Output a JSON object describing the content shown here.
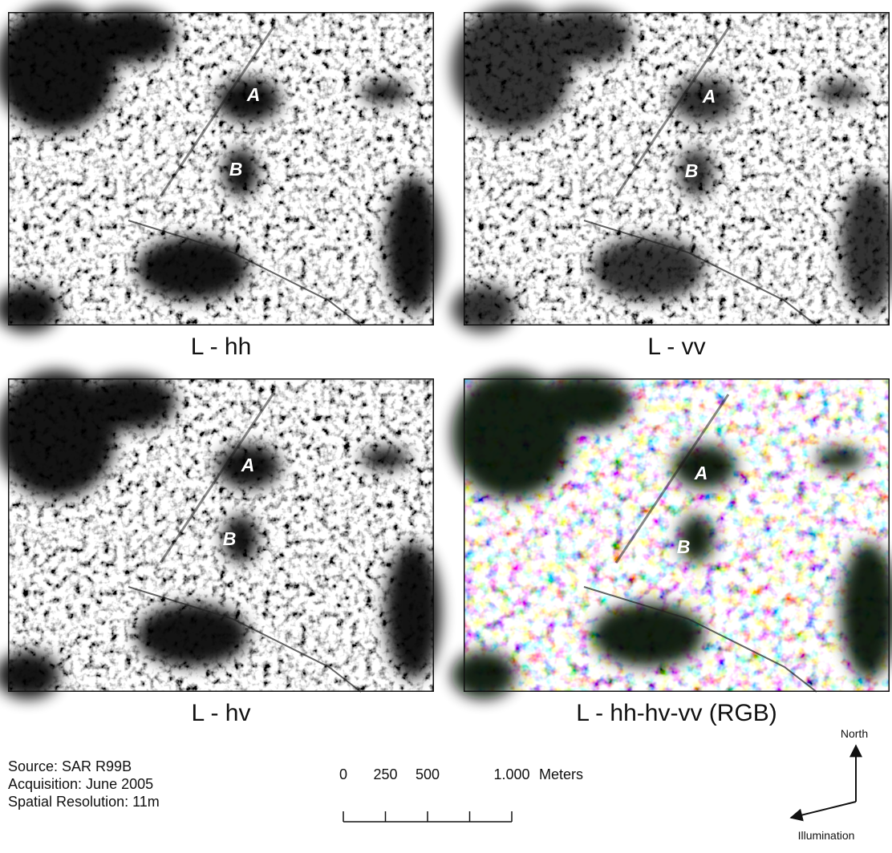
{
  "panels": [
    {
      "caption": "L - hh",
      "labels": [
        "A",
        "B"
      ]
    },
    {
      "caption": "L - vv",
      "labels": [
        "A",
        "B"
      ]
    },
    {
      "caption": "L - hv",
      "labels": [
        "A",
        "B"
      ]
    },
    {
      "caption": "L - hh-hv-vv (RGB)",
      "labels": [
        "A",
        "B"
      ]
    }
  ],
  "source": {
    "lines": [
      "Source: SAR R99B",
      "Acquisition: June 2005",
      "Spatial Resolution: 11m"
    ]
  },
  "scale_bar": {
    "ticks": [
      {
        "value": 0,
        "label": "0"
      },
      {
        "value": 250,
        "label": "250"
      },
      {
        "value": 500,
        "label": "500"
      },
      {
        "value": 750,
        "label": null
      },
      {
        "value": 1000,
        "label": "1.000"
      }
    ],
    "unit": "Meters"
  },
  "north_arrow": {
    "north": "North",
    "illumination": "Illumination"
  }
}
